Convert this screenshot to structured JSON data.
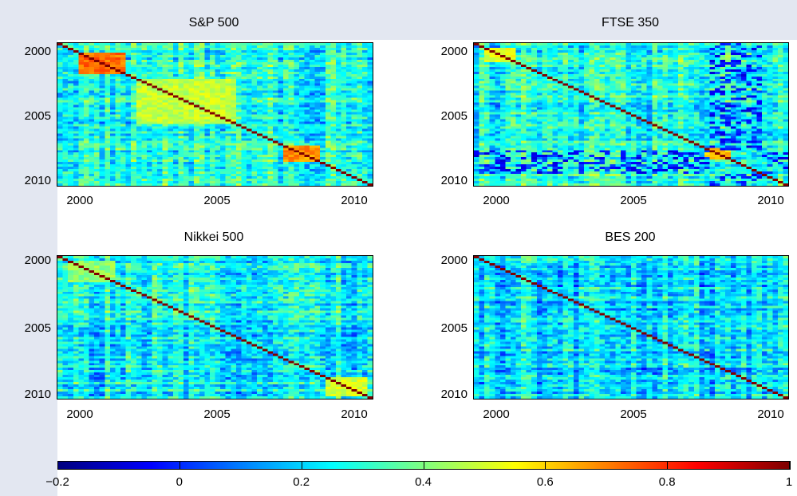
{
  "chart_data": [
    {
      "type": "heatmap",
      "title": "S&P 500",
      "xlabel": "",
      "ylabel": "",
      "xlim": [
        1999.5,
        2010.5
      ],
      "ylim": [
        1999.5,
        2010.5
      ],
      "x_ticks": [
        "2000",
        "2005",
        "2010"
      ],
      "y_ticks": [
        "2000",
        "2005",
        "2010"
      ],
      "n_periods": 60,
      "mean_correlation": 0.28,
      "diagonal_value": 1.0,
      "high_correlation_blocks": [
        {
          "from": 2000.3,
          "to": 2001.8,
          "value": 0.72
        },
        {
          "from": 2002.3,
          "to": 2005.8,
          "value": 0.48
        },
        {
          "from": 2007.3,
          "to": 2008.6,
          "value": 0.68
        }
      ]
    },
    {
      "type": "heatmap",
      "title": "FTSE 350",
      "xlabel": "",
      "ylabel": "",
      "xlim": [
        1999.5,
        2010.5
      ],
      "ylim": [
        1999.5,
        2010.5
      ],
      "x_ticks": [
        "2000",
        "2005",
        "2010"
      ],
      "y_ticks": [
        "2000",
        "2005",
        "2010"
      ],
      "n_periods": 60,
      "mean_correlation": 0.27,
      "diagonal_value": 1.0,
      "high_correlation_blocks": [
        {
          "from": 1999.8,
          "to": 2001.0,
          "value": 0.52
        },
        {
          "from": 2007.5,
          "to": 2008.5,
          "value": 0.62
        }
      ],
      "low_correlation_blocks": [
        {
          "from": 2007.8,
          "to": 2009.6,
          "value": -0.1
        }
      ]
    },
    {
      "type": "heatmap",
      "title": "Nikkei 500",
      "xlabel": "",
      "ylabel": "",
      "xlim": [
        1999.5,
        2010.5
      ],
      "ylim": [
        1999.5,
        2010.5
      ],
      "x_ticks": [
        "2000",
        "2005",
        "2010"
      ],
      "y_ticks": [
        "2000",
        "2005",
        "2010"
      ],
      "n_periods": 60,
      "mean_correlation": 0.24,
      "diagonal_value": 1.0,
      "high_correlation_blocks": [
        {
          "from": 1999.8,
          "to": 2001.5,
          "value": 0.42
        },
        {
          "from": 2008.8,
          "to": 2010.3,
          "value": 0.5
        }
      ]
    },
    {
      "type": "heatmap",
      "title": "BES 200",
      "xlabel": "",
      "ylabel": "",
      "xlim": [
        1999.5,
        2010.5
      ],
      "ylim": [
        1999.5,
        2010.5
      ],
      "x_ticks": [
        "2000",
        "2005",
        "2010"
      ],
      "y_ticks": [
        "2000",
        "2005",
        "2010"
      ],
      "n_periods": 60,
      "mean_correlation": 0.2,
      "diagonal_value": 1.0,
      "high_correlation_blocks": []
    }
  ],
  "colorbar": {
    "min": -0.2,
    "max": 1,
    "ticks": [
      "−0.2",
      "0",
      "0.2",
      "0.4",
      "0.6",
      "0.8",
      "1"
    ],
    "tick_values": [
      -0.2,
      0,
      0.2,
      0.4,
      0.6,
      0.8,
      1
    ],
    "colormap": "jet"
  }
}
